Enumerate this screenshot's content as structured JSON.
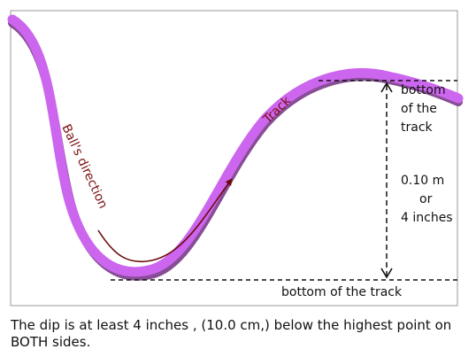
{
  "diagram": {
    "track_label": "Track",
    "direction_label": "Ball's direction",
    "right_top_label_lines": [
      "bottom",
      "of the",
      "track"
    ],
    "distance_lines": [
      "0.10 m",
      "or",
      "4 inches"
    ],
    "bottom_label": "bottom of the track",
    "colors": {
      "track": "#cc66ee",
      "track_shadow": "#7a3a8a",
      "label_text": "#7a1010",
      "arrow": "#6b0a0a",
      "border": "#999999",
      "text": "#111111"
    }
  },
  "caption": "The dip is at least 4 inches , (10.0 cm,) below the highest point on BOTH sides."
}
